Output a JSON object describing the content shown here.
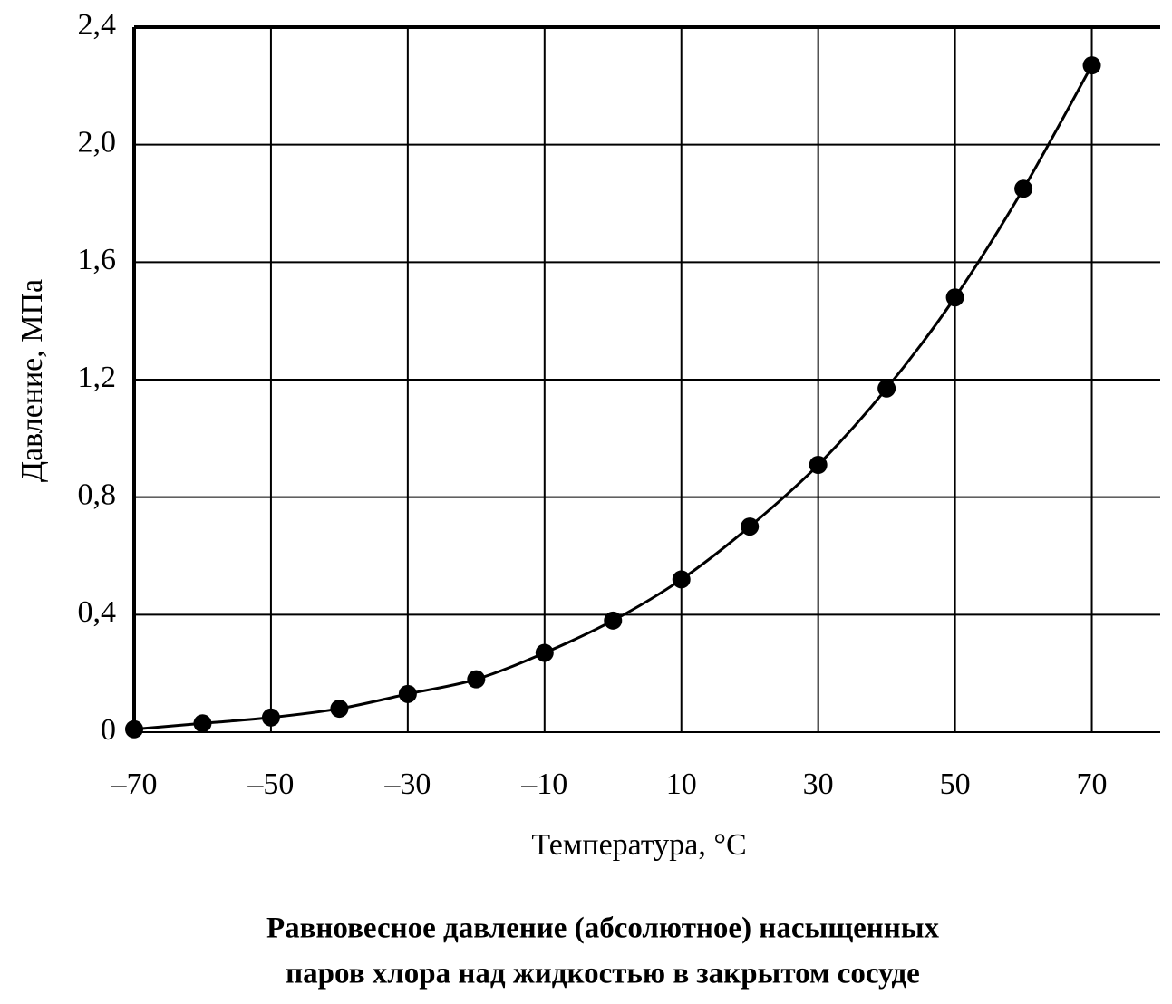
{
  "chart_data": {
    "type": "line",
    "title": [
      "Равновесное давление (абсолютное) насыщенных",
      "паров хлора над жидкостью в закрытом сосуде"
    ],
    "x_label": "Температура, °С",
    "y_label": "Давление, МПа",
    "x": [
      -70,
      -60,
      -50,
      -40,
      -30,
      -20,
      -10,
      0,
      10,
      20,
      30,
      40,
      50,
      60,
      70
    ],
    "values": [
      0.01,
      0.03,
      0.05,
      0.08,
      0.13,
      0.18,
      0.27,
      0.38,
      0.52,
      0.7,
      0.91,
      1.17,
      1.48,
      1.85,
      2.27
    ],
    "color": "#000000",
    "xlim": [
      -70,
      80
    ],
    "ylim": [
      0,
      2.4
    ],
    "xticks": [
      {
        "value": -70,
        "label": "–70"
      },
      {
        "value": -50,
        "label": "–50"
      },
      {
        "value": -30,
        "label": "–30"
      },
      {
        "value": -10,
        "label": "–10"
      },
      10,
      30,
      50,
      70
    ],
    "yticks": [
      0,
      {
        "value": 0.4,
        "label": "0,4"
      },
      {
        "value": 0.8,
        "label": "0,8"
      },
      {
        "value": 1.2,
        "label": "1,2"
      },
      {
        "value": 1.6,
        "label": "1,6"
      },
      {
        "value": 2.0,
        "label": "2,0"
      },
      {
        "value": 2.4,
        "label": "2,4"
      }
    ],
    "grid": true
  }
}
